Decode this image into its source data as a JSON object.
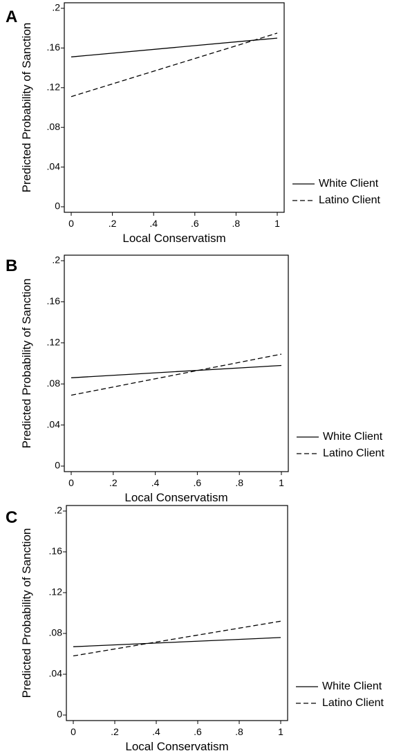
{
  "chart_data": [
    {
      "type": "line",
      "panel_label": "A",
      "xlabel": "Local Conservatism",
      "ylabel": "Predicted Probability of Sanction",
      "x_ticks": [
        "0",
        ".2",
        ".4",
        ".6",
        ".8",
        "1"
      ],
      "y_ticks": [
        "0",
        ".04",
        ".08",
        ".12",
        ".16",
        ".2"
      ],
      "xlim": [
        0,
        1
      ],
      "ylim": [
        0,
        0.2
      ],
      "grid": false,
      "legend_position": "right",
      "series": [
        {
          "name": "White Client",
          "style": "solid",
          "x": [
            0,
            1
          ],
          "y": [
            0.151,
            0.17
          ]
        },
        {
          "name": "Latino Client",
          "style": "dashed",
          "x": [
            0,
            1
          ],
          "y": [
            0.111,
            0.175
          ]
        }
      ]
    },
    {
      "type": "line",
      "panel_label": "B",
      "xlabel": "Local Conservatism",
      "ylabel": "Predicted Probability of Sanction",
      "x_ticks": [
        "0",
        ".2",
        ".4",
        ".6",
        ".8",
        "1"
      ],
      "y_ticks": [
        "0",
        ".04",
        ".08",
        ".12",
        ".16",
        ".2"
      ],
      "xlim": [
        0,
        1
      ],
      "ylim": [
        0,
        0.2
      ],
      "grid": false,
      "legend_position": "right",
      "series": [
        {
          "name": "White Client",
          "style": "solid",
          "x": [
            0,
            1
          ],
          "y": [
            0.086,
            0.098
          ]
        },
        {
          "name": "Latino Client",
          "style": "dashed",
          "x": [
            0,
            1
          ],
          "y": [
            0.069,
            0.109
          ]
        }
      ]
    },
    {
      "type": "line",
      "panel_label": "C",
      "xlabel": "Local Conservatism",
      "ylabel": "Predicted Probability of Sanction",
      "x_ticks": [
        "0",
        ".2",
        ".4",
        ".6",
        ".8",
        "1"
      ],
      "y_ticks": [
        "0",
        ".04",
        ".08",
        ".12",
        ".16",
        ".2"
      ],
      "xlim": [
        0,
        1
      ],
      "ylim": [
        0,
        0.2
      ],
      "grid": false,
      "legend_position": "right",
      "series": [
        {
          "name": "White Client",
          "style": "solid",
          "x": [
            0,
            1
          ],
          "y": [
            0.067,
            0.076
          ]
        },
        {
          "name": "Latino Client",
          "style": "dashed",
          "x": [
            0,
            1
          ],
          "y": [
            0.058,
            0.092
          ]
        }
      ]
    }
  ]
}
